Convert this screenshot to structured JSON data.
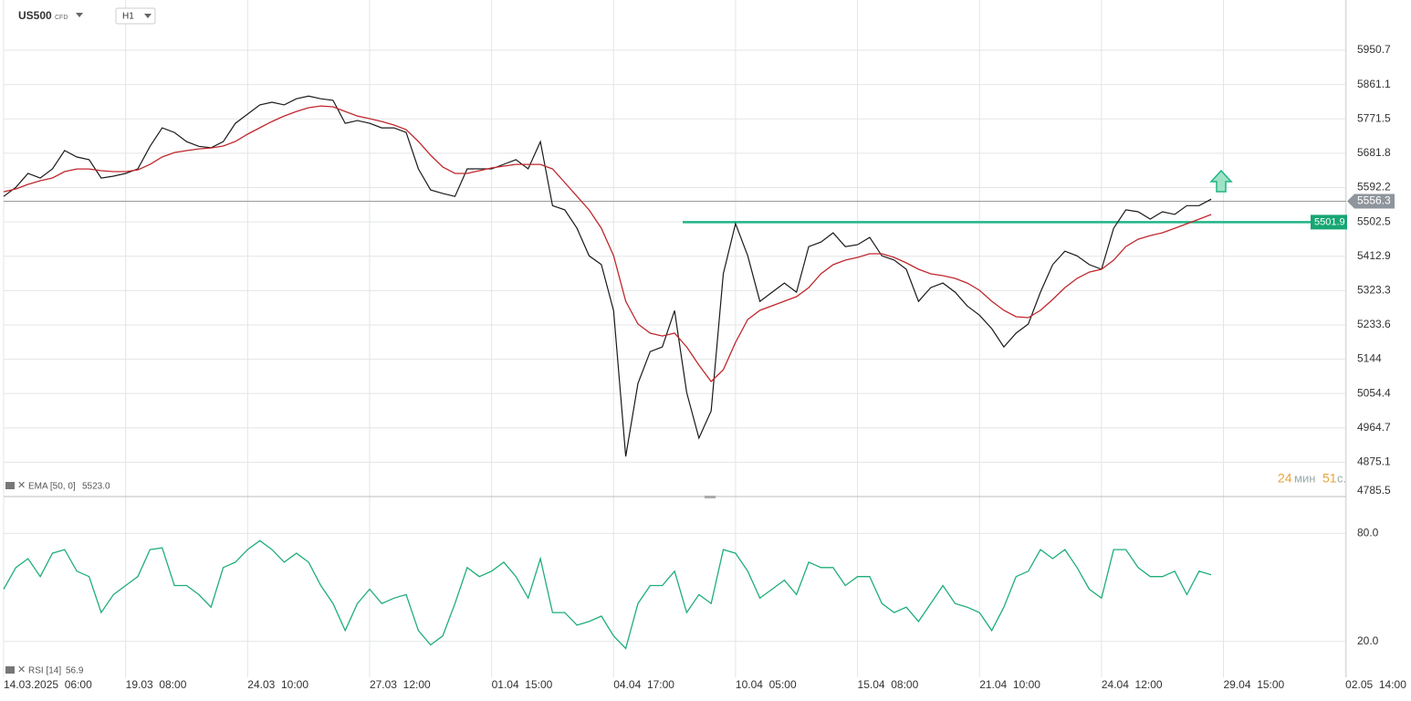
{
  "header": {
    "badge": "CFD",
    "timeframe": "H1",
    "timer_minutes": "24",
    "timer_minutes_unit": "мин",
    "timer_seconds": "51",
    "timer_seconds_unit": "с."
  },
  "chart_data": [
    {
      "type": "line",
      "x": [
        0,
        1,
        2,
        3,
        4,
        5,
        6,
        7,
        8,
        9,
        10,
        11,
        12,
        13,
        14,
        15,
        16,
        17,
        18,
        19,
        20,
        21,
        22,
        23,
        24,
        25,
        26,
        27,
        28,
        29,
        30,
        31,
        32,
        33,
        34,
        35,
        36,
        37,
        38,
        39,
        40,
        41,
        42,
        43,
        44,
        45,
        46,
        47,
        48,
        49,
        50,
        51,
        52,
        53,
        54,
        55,
        56,
        57,
        58,
        59,
        60,
        61,
        62,
        63,
        64,
        65,
        66,
        67,
        68,
        69,
        70,
        71,
        72,
        73,
        74,
        75,
        76,
        77,
        78,
        79,
        80,
        81,
        82,
        83,
        84,
        85,
        86,
        87,
        88,
        89,
        90,
        91,
        92,
        93,
        94,
        95,
        96,
        97,
        98,
        99
      ],
      "series": [
        {
          "name": "US500",
          "color": "#1a1a1a",
          "values": [
            5569,
            5593,
            5629,
            5617,
            5641,
            5689,
            5672,
            5665,
            5617,
            5622,
            5629,
            5641,
            5700,
            5748,
            5736,
            5712,
            5700,
            5696,
            5712,
            5760,
            5784,
            5808,
            5815,
            5808,
            5824,
            5831,
            5824,
            5820,
            5760,
            5767,
            5760,
            5748,
            5748,
            5736,
            5641,
            5586,
            5577,
            5569,
            5641,
            5641,
            5641,
            5653,
            5665,
            5641,
            5712,
            5545,
            5534,
            5486,
            5414,
            5391,
            5271,
            4890,
            5081,
            5164,
            5176,
            5271,
            5057,
            4938,
            5009,
            5367,
            5498,
            5414,
            5295,
            5319,
            5343,
            5319,
            5438,
            5450,
            5474,
            5438,
            5443,
            5462,
            5414,
            5403,
            5379,
            5295,
            5331,
            5343,
            5319,
            5283,
            5259,
            5224,
            5176,
            5212,
            5236,
            5319,
            5391,
            5426,
            5414,
            5391,
            5379,
            5486,
            5534,
            5529,
            5510,
            5529,
            5522,
            5545,
            5545,
            5562
          ]
        },
        {
          "name": "EMA [50, 0]",
          "color": "#c0272d",
          "values": [
            5581.3,
            5588.5,
            5600.4,
            5610.0,
            5617.1,
            5633.8,
            5640.9,
            5640.9,
            5636.2,
            5633.8,
            5633.8,
            5638.5,
            5652.8,
            5671.9,
            5683.8,
            5688.6,
            5693.3,
            5695.7,
            5700.5,
            5712.4,
            5731.5,
            5748.2,
            5764.8,
            5779.1,
            5791.0,
            5800.6,
            5805.3,
            5803.0,
            5791.0,
            5779.1,
            5772.0,
            5764.8,
            5755.3,
            5743.4,
            5712.4,
            5676.7,
            5645.7,
            5629.0,
            5629.0,
            5636.2,
            5643.3,
            5648.1,
            5652.8,
            5652.8,
            5652.8,
            5640.9,
            5605.2,
            5569.4,
            5533.7,
            5486.0,
            5414.5,
            5295.4,
            5235.8,
            5212.0,
            5204.8,
            5212.0,
            5176.2,
            5128.6,
            5085.7,
            5116.6,
            5188.1,
            5247.7,
            5271.6,
            5283.5,
            5295.4,
            5307.3,
            5331.1,
            5366.9,
            5390.7,
            5402.6,
            5409.8,
            5419.3,
            5419.3,
            5409.8,
            5395.5,
            5378.8,
            5366.9,
            5362.1,
            5355.0,
            5343.0,
            5324.0,
            5295.4,
            5271.6,
            5254.9,
            5252.5,
            5271.6,
            5300.1,
            5331.1,
            5355.0,
            5371.6,
            5378.8,
            5402.6,
            5438.3,
            5457.4,
            5466.9,
            5474.1,
            5486.0,
            5497.9,
            5509.8,
            5521.8
          ]
        }
      ],
      "indicator_value": "5523.0",
      "last_price": 5556.3,
      "support_level": 5501.9,
      "xlim": [
        0,
        115.3
      ],
      "xticks": [
        {
          "value": 0,
          "label": "14.03.2025  06:00"
        },
        {
          "value": 10,
          "label": "19.03  08:00"
        },
        {
          "value": 20,
          "label": "24.03  10:00"
        },
        {
          "value": 30,
          "label": "27.03  12:00"
        },
        {
          "value": 40,
          "label": "01.04  15:00"
        },
        {
          "value": 50,
          "label": "04.04  17:00"
        },
        {
          "value": 60,
          "label": "10.04  05:00"
        },
        {
          "value": 70,
          "label": "15.04  08:00"
        },
        {
          "value": 80,
          "label": "21.04  10:00"
        },
        {
          "value": 90,
          "label": "24.04  12:00"
        },
        {
          "value": 100,
          "label": "29.04  15:00"
        },
        {
          "value": 110,
          "label": "02.05  14:00"
        }
      ],
      "ylim": [
        4785.5,
        6039
      ],
      "yticks": [
        5950.7,
        5861.1,
        5771.5,
        5681.8,
        5592.2,
        5502.5,
        5412.9,
        5323.3,
        5233.6,
        5144.0,
        5054.4,
        4964.7,
        4875.1,
        4785.5
      ],
      "grid": true
    },
    {
      "type": "line",
      "series": [
        {
          "name": "RSI [14]",
          "color": "#1fae78",
          "values": [
            49,
            61,
            66,
            56,
            69,
            71,
            59,
            56,
            36,
            46,
            51,
            56,
            71,
            72,
            51,
            51,
            46,
            39,
            61,
            64,
            71,
            76,
            71,
            64,
            69,
            64,
            51,
            41,
            26,
            41,
            49,
            41,
            44,
            46,
            26,
            18,
            23,
            41,
            61,
            56,
            59,
            64,
            56,
            44,
            66,
            36,
            36,
            29,
            31,
            34,
            23,
            16,
            41,
            51,
            51,
            59,
            36,
            46,
            41,
            71,
            69,
            59,
            44,
            49,
            54,
            46,
            64,
            61,
            61,
            51,
            56,
            56,
            41,
            36,
            39,
            31,
            41,
            51,
            41,
            39,
            36,
            26,
            39,
            56,
            59,
            71,
            66,
            71,
            61,
            49,
            44,
            71,
            71,
            61,
            56,
            56,
            59,
            46,
            59,
            57
          ]
        }
      ],
      "indicator_value": 56.9,
      "ylim": [
        0,
        100
      ],
      "yticks": [
        {
          "value": 80,
          "label": "80.0"
        },
        {
          "value": 20,
          "label": "20.0"
        }
      ],
      "grid": true
    }
  ]
}
